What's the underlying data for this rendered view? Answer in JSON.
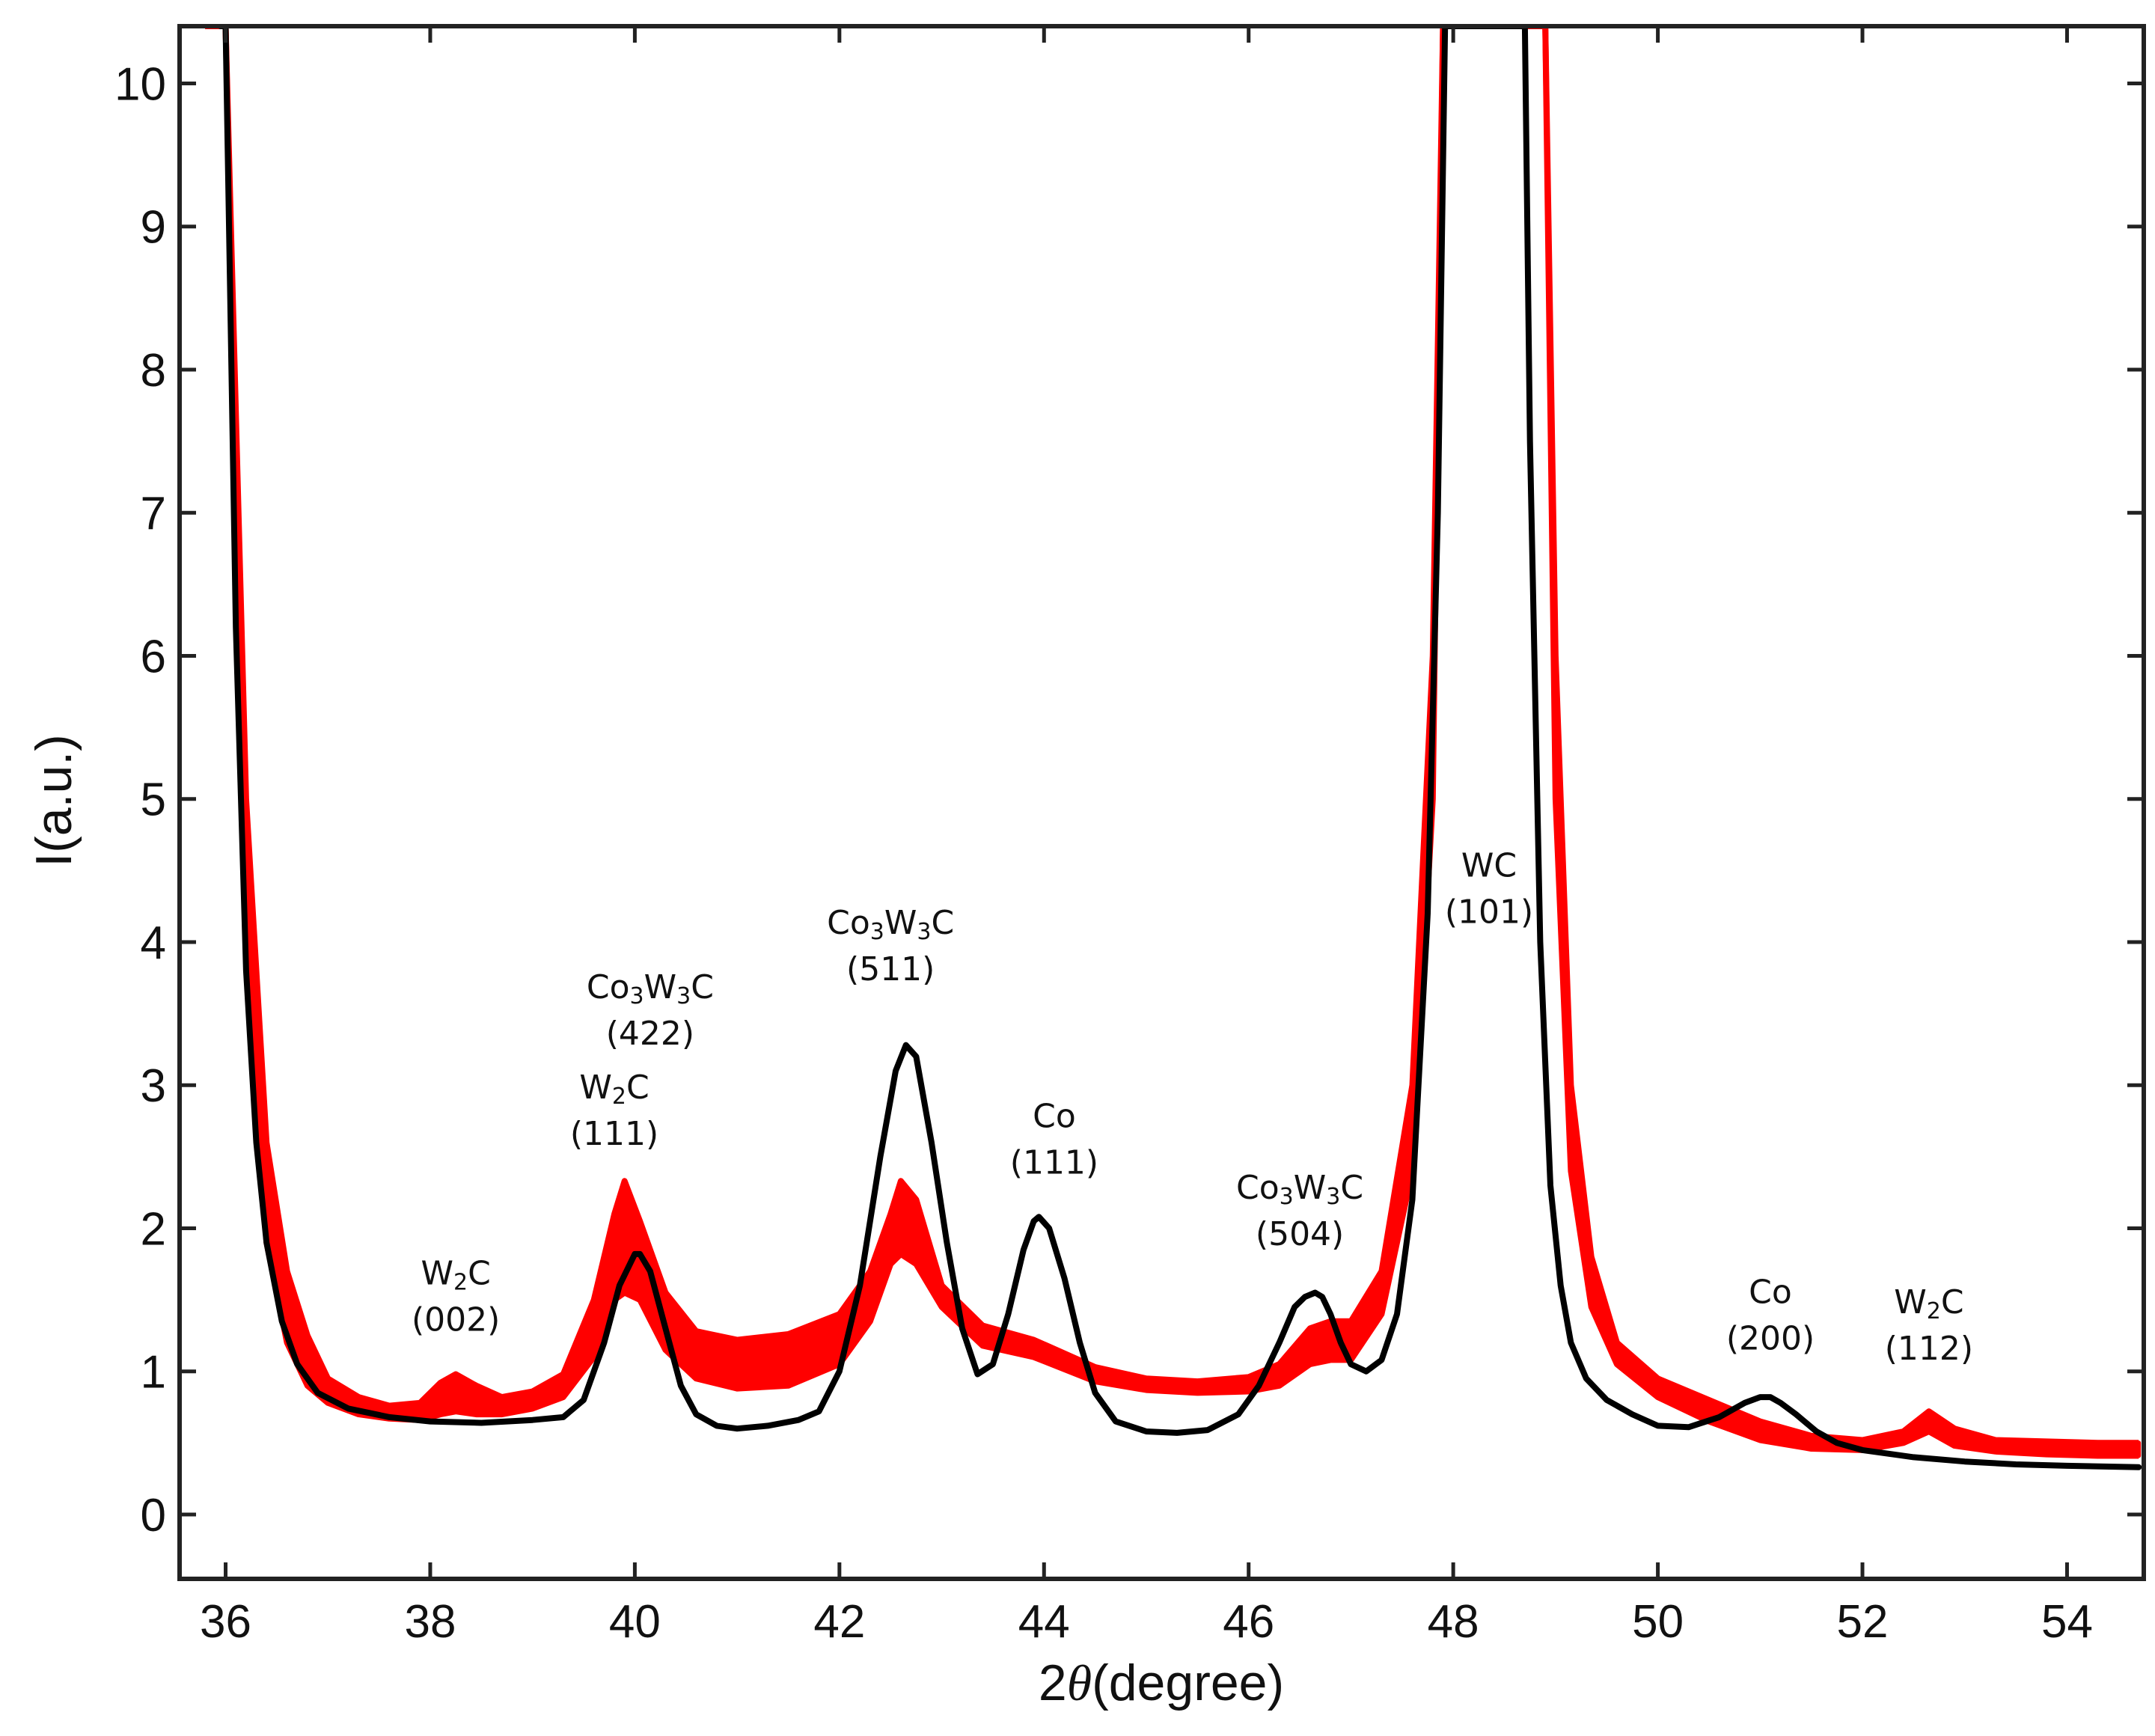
{
  "chart_data": {
    "type": "line",
    "title": "",
    "xlabel": "2θ(degree)",
    "xlabel_parts": {
      "prefix": "2",
      "var": "θ",
      "suffix": "(degree)"
    },
    "ylabel": "I(a.u.)",
    "xlim": [
      35.55,
      54.75
    ],
    "ylim": [
      -0.45,
      10.4
    ],
    "xticks": [
      36,
      38,
      40,
      42,
      44,
      46,
      48,
      50,
      52,
      54
    ],
    "yticks": [
      0,
      1,
      2,
      3,
      4,
      5,
      6,
      7,
      8,
      9,
      10
    ],
    "grid": false,
    "legend": "none",
    "series": [
      {
        "name": "red-band-upper",
        "color": "#ff0000",
        "x": [
          35.8,
          36.0,
          36.2,
          36.4,
          36.6,
          36.8,
          37.0,
          37.3,
          37.6,
          37.9,
          38.1,
          38.25,
          38.45,
          38.7,
          39.0,
          39.3,
          39.6,
          39.8,
          39.9,
          40.05,
          40.3,
          40.6,
          41.0,
          41.5,
          42.0,
          42.3,
          42.5,
          42.6,
          42.75,
          43.0,
          43.4,
          43.9,
          44.5,
          45.0,
          45.5,
          46.0,
          46.3,
          46.6,
          46.8,
          47.0,
          47.3,
          47.6,
          47.8,
          47.9,
          48.0,
          48.8,
          48.9,
          49.0,
          49.15,
          49.35,
          49.6,
          50.0,
          50.5,
          51.0,
          51.5,
          52.0,
          52.4,
          52.65,
          52.9,
          53.3,
          53.8,
          54.3,
          54.7
        ],
        "values": [
          10.4,
          10.4,
          5.0,
          2.6,
          1.7,
          1.25,
          0.95,
          0.82,
          0.76,
          0.78,
          0.92,
          0.98,
          0.9,
          0.82,
          0.86,
          0.98,
          1.5,
          2.1,
          2.33,
          2.05,
          1.55,
          1.28,
          1.22,
          1.26,
          1.4,
          1.7,
          2.1,
          2.33,
          2.2,
          1.6,
          1.32,
          1.22,
          1.03,
          0.95,
          0.93,
          0.96,
          1.05,
          1.3,
          1.35,
          1.35,
          1.7,
          3.0,
          6.0,
          10.4,
          10.4,
          10.4,
          10.4,
          6.0,
          3.0,
          1.8,
          1.2,
          0.95,
          0.8,
          0.65,
          0.55,
          0.52,
          0.58,
          0.72,
          0.6,
          0.52,
          0.51,
          0.5,
          0.5
        ]
      },
      {
        "name": "red-band-lower",
        "color": "#ff0000",
        "x": [
          35.8,
          36.0,
          36.2,
          36.4,
          36.6,
          36.8,
          37.0,
          37.3,
          37.6,
          37.9,
          38.1,
          38.25,
          38.45,
          38.7,
          39.0,
          39.3,
          39.6,
          39.8,
          39.9,
          40.05,
          40.3,
          40.6,
          41.0,
          41.5,
          42.0,
          42.3,
          42.5,
          42.6,
          42.75,
          43.0,
          43.4,
          43.9,
          44.5,
          45.0,
          45.5,
          46.0,
          46.3,
          46.6,
          46.8,
          47.0,
          47.3,
          47.6,
          47.8,
          47.9,
          48.0,
          48.8,
          48.9,
          49.0,
          49.15,
          49.35,
          49.6,
          50.0,
          50.5,
          51.0,
          51.5,
          52.0,
          52.4,
          52.65,
          52.9,
          53.3,
          53.8,
          54.3,
          54.7
        ],
        "values": [
          10.4,
          10.4,
          4.0,
          1.9,
          1.2,
          0.9,
          0.78,
          0.7,
          0.67,
          0.66,
          0.7,
          0.72,
          0.7,
          0.7,
          0.74,
          0.82,
          1.1,
          1.5,
          1.55,
          1.5,
          1.15,
          0.95,
          0.88,
          0.9,
          1.05,
          1.35,
          1.75,
          1.82,
          1.75,
          1.45,
          1.18,
          1.1,
          0.93,
          0.87,
          0.85,
          0.86,
          0.9,
          1.05,
          1.08,
          1.08,
          1.4,
          2.4,
          5.0,
          10.4,
          10.4,
          10.4,
          10.4,
          5.0,
          2.4,
          1.45,
          1.05,
          0.82,
          0.65,
          0.52,
          0.46,
          0.45,
          0.5,
          0.58,
          0.48,
          0.44,
          0.42,
          0.41,
          0.41
        ]
      },
      {
        "name": "black-curve",
        "color": "#000000",
        "x": [
          35.95,
          36.0,
          36.1,
          36.2,
          36.3,
          36.4,
          36.55,
          36.7,
          36.9,
          37.2,
          37.6,
          38.0,
          38.5,
          39.0,
          39.3,
          39.5,
          39.7,
          39.85,
          40.0,
          40.05,
          40.15,
          40.3,
          40.45,
          40.6,
          40.8,
          41.0,
          41.3,
          41.6,
          41.8,
          42.0,
          42.2,
          42.4,
          42.55,
          42.65,
          42.75,
          42.9,
          43.05,
          43.2,
          43.35,
          43.5,
          43.65,
          43.8,
          43.9,
          43.95,
          44.05,
          44.2,
          44.35,
          44.5,
          44.7,
          45.0,
          45.3,
          45.6,
          45.9,
          46.1,
          46.3,
          46.45,
          46.55,
          46.65,
          46.72,
          46.8,
          46.9,
          47.0,
          47.15,
          47.3,
          47.45,
          47.6,
          47.75,
          47.85,
          47.92,
          48.7,
          48.75,
          48.85,
          48.95,
          49.05,
          49.15,
          49.3,
          49.5,
          49.75,
          50.0,
          50.3,
          50.6,
          50.85,
          51.0,
          51.1,
          51.2,
          51.35,
          51.55,
          51.75,
          52.0,
          52.5,
          53.0,
          53.5,
          54.0,
          54.7
        ],
        "values": [
          10.4,
          10.4,
          6.2,
          3.8,
          2.6,
          1.9,
          1.35,
          1.05,
          0.85,
          0.74,
          0.68,
          0.65,
          0.64,
          0.66,
          0.68,
          0.8,
          1.2,
          1.6,
          1.82,
          1.82,
          1.7,
          1.3,
          0.9,
          0.7,
          0.62,
          0.6,
          0.62,
          0.66,
          0.72,
          1.0,
          1.6,
          2.5,
          3.1,
          3.28,
          3.2,
          2.6,
          1.9,
          1.3,
          0.98,
          1.05,
          1.4,
          1.85,
          2.05,
          2.08,
          2.0,
          1.65,
          1.2,
          0.85,
          0.65,
          0.58,
          0.57,
          0.59,
          0.7,
          0.9,
          1.2,
          1.45,
          1.52,
          1.55,
          1.52,
          1.4,
          1.2,
          1.05,
          1.0,
          1.08,
          1.4,
          2.2,
          4.2,
          7.0,
          10.4,
          10.4,
          7.5,
          4.0,
          2.3,
          1.6,
          1.2,
          0.95,
          0.8,
          0.7,
          0.62,
          0.61,
          0.68,
          0.78,
          0.82,
          0.82,
          0.78,
          0.7,
          0.58,
          0.5,
          0.45,
          0.4,
          0.37,
          0.35,
          0.34,
          0.33
        ]
      }
    ],
    "annotations": [
      {
        "main": "W",
        "sub": "2",
        "rest": "C",
        "miller": "(002)",
        "x": 38.25,
        "y": 1.45
      },
      {
        "main": "W",
        "sub": "2",
        "rest": "C",
        "miller": "(111)",
        "x": 39.8,
        "y": 2.75
      },
      {
        "main": "Co",
        "sub": "3",
        "rest": "W",
        "sub2": "3",
        "rest2": "C",
        "miller": "(422)",
        "x": 40.15,
        "y": 3.45
      },
      {
        "main": "Co",
        "sub": "3",
        "rest": "W",
        "sub2": "3",
        "rest2": "C",
        "miller": "(511)",
        "x": 42.5,
        "y": 3.9
      },
      {
        "main": "Co",
        "sub": "",
        "rest": "",
        "miller": "(111)",
        "x": 44.1,
        "y": 2.55
      },
      {
        "main": "Co",
        "sub": "3",
        "rest": "W",
        "sub2": "3",
        "rest2": "C",
        "miller": "(504)",
        "x": 46.5,
        "y": 2.05
      },
      {
        "main": "WC",
        "sub": "",
        "rest": "",
        "miller": "(101)",
        "x": 48.35,
        "y": 4.3
      },
      {
        "main": "Co",
        "sub": "",
        "rest": "",
        "miller": "(200)",
        "x": 51.1,
        "y": 1.32
      },
      {
        "main": "W",
        "sub": "2",
        "rest": "C",
        "miller": "(112)",
        "x": 52.65,
        "y": 1.25
      }
    ]
  }
}
